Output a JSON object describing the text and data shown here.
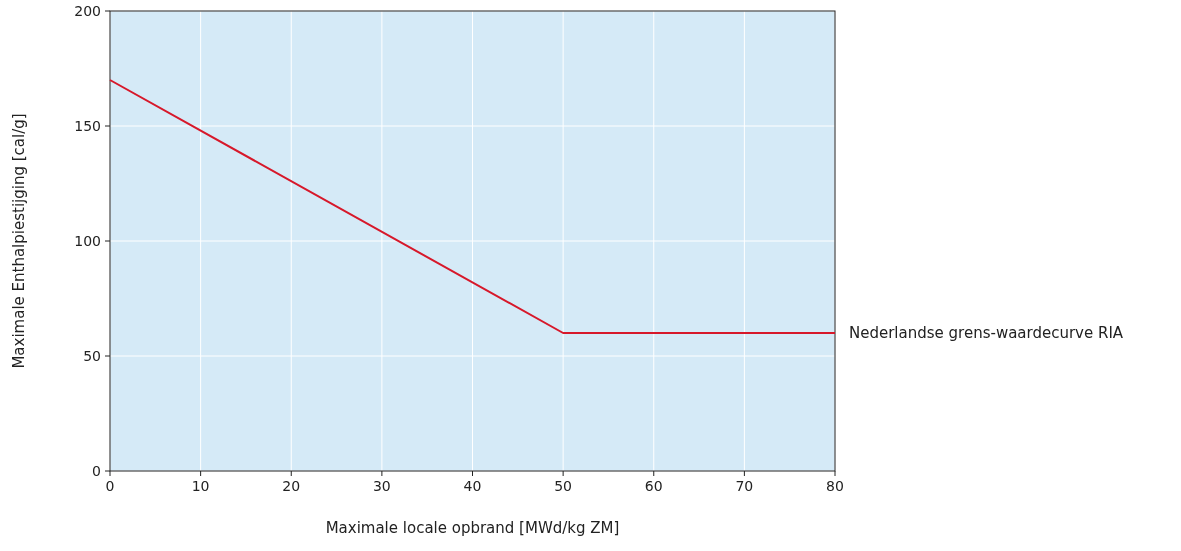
{
  "chart_data": {
    "type": "line",
    "xlabel": "Maximale locale opbrand [MWd/kg ZM]",
    "ylabel": "Maximale Enthalpiestijging [cal/g]",
    "x": [
      0,
      50,
      80
    ],
    "series": [
      {
        "name": "Nederlandse grens-waardecurve RIA",
        "color": "#d7182a",
        "values": [
          170,
          60,
          60
        ]
      }
    ],
    "xlim": [
      0,
      80
    ],
    "xticks": [
      0,
      10,
      20,
      30,
      40,
      50,
      60,
      70,
      80
    ],
    "ylim": [
      0,
      200
    ],
    "yticks": [
      0,
      50,
      100,
      150,
      200
    ],
    "grid": true,
    "marker": "none",
    "line_style": "solid",
    "legend": false
  }
}
